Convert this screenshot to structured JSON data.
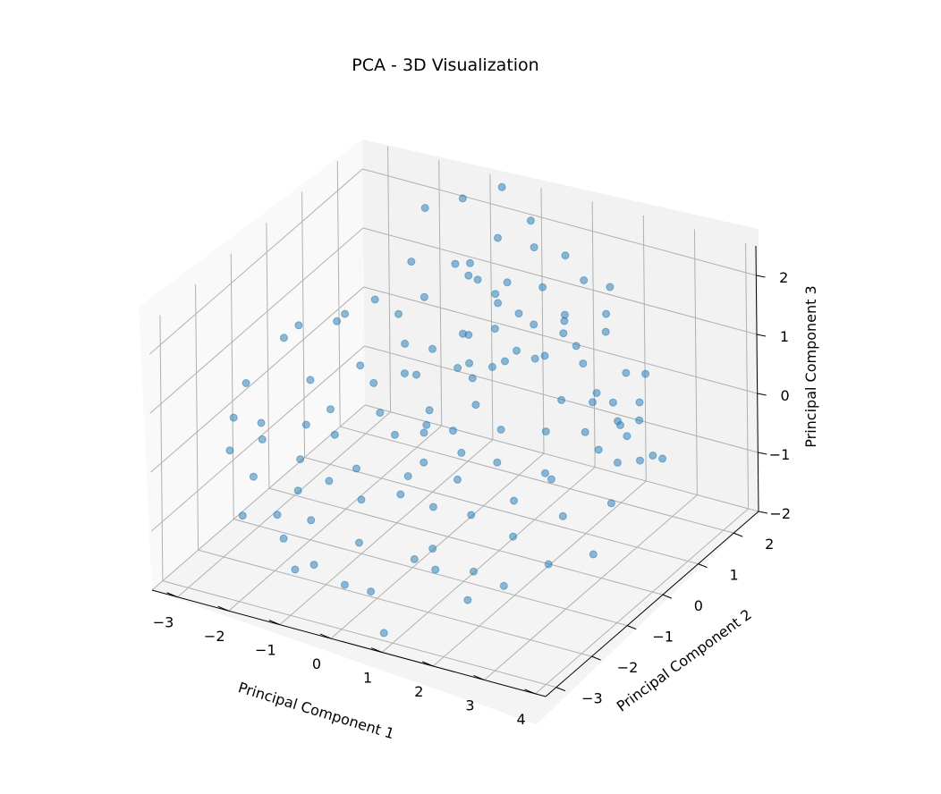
{
  "chart_data": {
    "type": "scatter",
    "title": "PCA - 3D Visualization",
    "xlabel": "Principal Component 1",
    "ylabel": "Principal Component 2",
    "zlabel": "Principal Component 3",
    "xlim": [
      -3.5,
      4.2
    ],
    "ylim": [
      -3.3,
      2.7
    ],
    "zlim": [
      -2.0,
      2.5
    ],
    "xticks": [
      "−3",
      "−2",
      "−1",
      "0",
      "1",
      "2",
      "3",
      "4"
    ],
    "yticks": [
      "−3",
      "−2",
      "−1",
      "0",
      "1",
      "2"
    ],
    "zticks": [
      "−2",
      "−1",
      "0",
      "1",
      "2"
    ],
    "xtick_values": [
      -3,
      -2,
      -1,
      0,
      1,
      2,
      3,
      4
    ],
    "ytick_values": [
      -3,
      -2,
      -1,
      0,
      1,
      2
    ],
    "ztick_values": [
      -2,
      -1,
      0,
      1,
      2
    ],
    "grid": true,
    "color": "#1f77b4",
    "points": [
      [
        1.1,
        2.3,
        1.4
      ],
      [
        -1.2,
        2.4,
        1.1
      ],
      [
        2.0,
        1.8,
        -0.2
      ],
      [
        2.8,
        1.4,
        0.2
      ],
      [
        3.4,
        0.9,
        -0.3
      ],
      [
        3.0,
        0.5,
        0.4
      ],
      [
        2.5,
        2.0,
        0.3
      ],
      [
        3.6,
        -0.1,
        0.6
      ],
      [
        1.5,
        1.5,
        0.8
      ],
      [
        0.9,
        1.2,
        0.6
      ],
      [
        -0.5,
        2.1,
        0.9
      ],
      [
        0.2,
        2.2,
        1.8
      ],
      [
        -0.7,
        2.6,
        2.4
      ],
      [
        0.0,
        2.4,
        2.1
      ],
      [
        -0.3,
        1.9,
        2.0
      ],
      [
        0.3,
        1.3,
        1.7
      ],
      [
        0.8,
        0.9,
        1.5
      ],
      [
        1.6,
        1.0,
        1.3
      ],
      [
        1.1,
        0.4,
        1.2
      ],
      [
        0.4,
        0.8,
        1.2
      ],
      [
        -0.6,
        1.5,
        1.5
      ],
      [
        -1.0,
        1.7,
        1.5
      ],
      [
        -2.4,
        0.6,
        0.9
      ],
      [
        -3.1,
        0.3,
        0.7
      ],
      [
        -2.9,
        -0.4,
        0.9
      ],
      [
        -2.6,
        -0.1,
        0.1
      ],
      [
        -3.3,
        -0.9,
        0.3
      ],
      [
        -2.8,
        -1.2,
        -0.1
      ],
      [
        -3.0,
        -1.8,
        -0.3
      ],
      [
        -2.5,
        -1.6,
        -0.1
      ],
      [
        -2.2,
        -0.8,
        -0.2
      ],
      [
        -1.9,
        -1.4,
        -0.4
      ],
      [
        -1.5,
        -1.0,
        -0.1
      ],
      [
        -1.2,
        -1.6,
        -0.5
      ],
      [
        -0.8,
        -1.4,
        -0.3
      ],
      [
        -0.5,
        -1.7,
        -0.6
      ],
      [
        0.0,
        -1.1,
        -0.4
      ],
      [
        -0.2,
        -2.2,
        -1.0
      ],
      [
        0.6,
        -1.8,
        -1.3
      ],
      [
        1.3,
        -1.2,
        -0.7
      ],
      [
        1.9,
        -2.0,
        -1.1
      ],
      [
        -1.8,
        -2.2,
        -0.9
      ],
      [
        -1.4,
        -2.6,
        -1.0
      ],
      [
        -0.6,
        -2.9,
        -1.1
      ],
      [
        0.3,
        -2.6,
        -1.5
      ],
      [
        0.9,
        -3.1,
        -1.8
      ],
      [
        -2.2,
        -2.6,
        -0.8
      ],
      [
        -1.0,
        -2.4,
        -0.7
      ],
      [
        0.2,
        -1.6,
        -0.4
      ],
      [
        0.7,
        -0.6,
        -0.1
      ],
      [
        1.2,
        -0.2,
        0.2
      ],
      [
        1.8,
        0.2,
        0.1
      ],
      [
        2.2,
        -0.4,
        -0.2
      ],
      [
        2.6,
        -0.8,
        0.0
      ],
      [
        3.1,
        -1.2,
        -0.3
      ],
      [
        3.7,
        -0.7,
        -0.2
      ],
      [
        3.9,
        -1.5,
        -0.6
      ],
      [
        3.3,
        -1.9,
        -0.7
      ],
      [
        2.7,
        -2.3,
        -1.0
      ],
      [
        1.5,
        -2.5,
        -0.9
      ],
      [
        0.5,
        0.1,
        0.3
      ],
      [
        0.1,
        0.5,
        0.7
      ],
      [
        -0.3,
        0.9,
        0.9
      ],
      [
        -0.8,
        0.3,
        0.4
      ],
      [
        -1.3,
        0.7,
        0.6
      ],
      [
        -1.7,
        1.1,
        0.8
      ],
      [
        -1.5,
        0.1,
        0.2
      ],
      [
        -1.1,
        -0.3,
        0.0
      ],
      [
        -0.6,
        -0.6,
        -0.1
      ],
      [
        -0.2,
        -0.2,
        0.2
      ],
      [
        0.4,
        -0.4,
        0.1
      ],
      [
        0.9,
        -1.0,
        -0.3
      ],
      [
        1.4,
        -0.6,
        -0.1
      ],
      [
        2.0,
        -1.0,
        -0.4
      ],
      [
        2.4,
        -1.6,
        -0.6
      ],
      [
        2.9,
        0.1,
        0.1
      ],
      [
        2.3,
        0.8,
        0.4
      ],
      [
        1.7,
        1.4,
        0.6
      ],
      [
        1.0,
        1.9,
        1.0
      ],
      [
        0.5,
        2.0,
        1.3
      ],
      [
        -0.1,
        1.6,
        1.1
      ],
      [
        -0.4,
        1.2,
        0.7
      ],
      [
        -0.9,
        0.9,
        0.5
      ],
      [
        -1.4,
        1.4,
        1.0
      ],
      [
        -2.0,
        1.9,
        1.2
      ],
      [
        -2.3,
        1.3,
        0.8
      ],
      [
        0.8,
        0.5,
        0.9
      ],
      [
        1.3,
        0.9,
        0.9
      ],
      [
        1.9,
        0.5,
        0.5
      ],
      [
        2.5,
        0.3,
        0.2
      ],
      [
        3.2,
        0.2,
        -0.1
      ],
      [
        0.2,
        1.0,
        0.4
      ],
      [
        -0.7,
        1.9,
        1.2
      ],
      [
        -1.9,
        0.3,
        0.3
      ],
      [
        -2.7,
        0.8,
        0.6
      ],
      [
        1.6,
        2.2,
        1.0
      ],
      [
        2.1,
        1.2,
        0.3
      ],
      [
        2.7,
        1.0,
        0.0
      ],
      [
        3.5,
        0.4,
        -0.1
      ],
      [
        -0.4,
        0.0,
        -0.2
      ],
      [
        0.1,
        -0.8,
        -0.3
      ],
      [
        0.7,
        -1.4,
        -0.6
      ],
      [
        1.1,
        -2.0,
        -0.9
      ],
      [
        -1.6,
        -1.9,
        -0.6
      ],
      [
        -2.4,
        -2.0,
        -0.5
      ],
      [
        -2.0,
        -0.4,
        -0.1
      ],
      [
        -1.1,
        0.4,
        0.3
      ],
      [
        -0.2,
        0.6,
        0.5
      ],
      [
        0.6,
        1.6,
        0.9
      ],
      [
        1.2,
        1.6,
        1.1
      ],
      [
        1.8,
        1.9,
        0.9
      ],
      [
        2.4,
        1.6,
        0.5
      ],
      [
        3.0,
        1.1,
        0.1
      ],
      [
        3.8,
        0.6,
        -0.1
      ],
      [
        2.2,
        -2.6,
        -1.2
      ],
      [
        0.0,
        -2.9,
        -1.3
      ],
      [
        -0.9,
        -3.0,
        -1.2
      ],
      [
        -3.2,
        -1.4,
        0.0
      ],
      [
        -2.0,
        2.3,
        1.9
      ],
      [
        -1.4,
        2.5,
        2.1
      ],
      [
        0.6,
        2.5,
        1.6
      ],
      [
        1.4,
        2.6,
        1.2
      ],
      [
        -0.1,
        -0.5,
        0.0
      ],
      [
        0.3,
        0.3,
        0.6
      ]
    ]
  }
}
